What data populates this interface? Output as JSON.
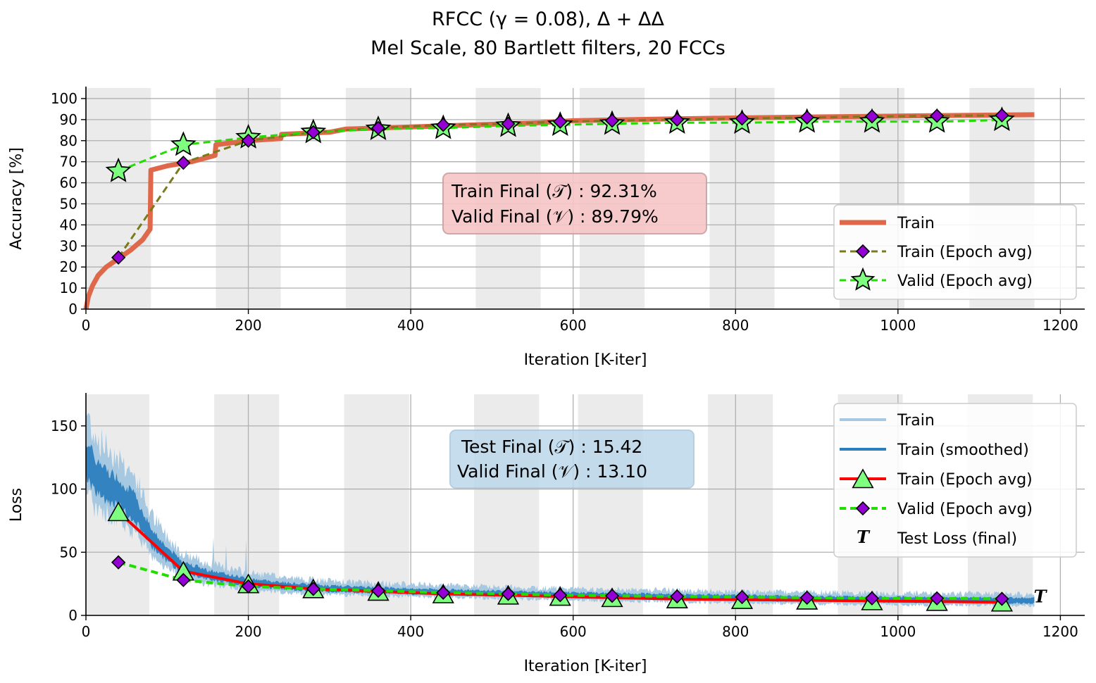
{
  "figure": {
    "title_line1": "RFCC (γ = 0.08), Δ + ΔΔ",
    "title_line2": "Mel Scale, 80 Bartlett filters, 20 FCCs"
  },
  "colors": {
    "train_acc": "#e0684a",
    "train_epoch_acc": "#7a7a1a",
    "valid_green": "#22dd00",
    "marker_purple": "#9400d3",
    "marker_green": "#7fff7f",
    "loss_raw": "#a6c8e0",
    "loss_smooth": "#2c7fbf",
    "loss_epoch": "#ff0000",
    "band": "#ebebeb",
    "grid": "#b0b0b0",
    "box_red": "#f7c6c6",
    "box_blue": "#bcd8ea"
  },
  "chart_data": [
    {
      "type": "line",
      "id": "accuracy",
      "xlabel": "Iteration [K-iter]",
      "ylabel": "Accuracy [%]",
      "xlim": [
        0,
        1230
      ],
      "ylim": [
        0,
        105
      ],
      "xticks": [
        0,
        200,
        400,
        600,
        800,
        1000,
        1200
      ],
      "yticks": [
        0,
        10,
        20,
        30,
        40,
        50,
        60,
        70,
        80,
        90,
        100
      ],
      "grid": true,
      "epoch_bands": [
        [
          0,
          80
        ],
        [
          160,
          240
        ],
        [
          320,
          400
        ],
        [
          480,
          560
        ],
        [
          608,
          688
        ],
        [
          768,
          848
        ],
        [
          928,
          1008
        ],
        [
          1088,
          1168
        ]
      ],
      "legend": {
        "position": "lower-right",
        "entries": [
          "Train",
          "Train (Epoch avg)",
          "Valid (Epoch avg)"
        ]
      },
      "annotation": {
        "line1": "Train Final (𝒯) :  92.31%",
        "line2": "Valid Final (𝒱) :  89.79%"
      },
      "series": [
        {
          "name": "Train",
          "style": "line",
          "x": [
            0,
            3,
            8,
            15,
            25,
            40,
            55,
            70,
            79,
            80,
            100,
            130,
            159,
            160,
            200,
            240,
            241,
            300,
            320,
            400,
            480,
            560,
            600,
            700,
            800,
            900,
            1000,
            1100,
            1168
          ],
          "y": [
            0,
            6,
            11,
            16,
            20,
            24,
            28,
            33,
            38,
            66,
            68,
            70,
            73,
            78,
            80,
            81,
            83,
            84,
            85.5,
            86.5,
            87.5,
            88.5,
            89.5,
            90.2,
            90.8,
            91.3,
            91.7,
            92.1,
            92.31
          ]
        },
        {
          "name": "Train (Epoch avg)",
          "style": "dashed-diamond",
          "x": [
            40,
            120,
            200,
            280,
            360,
            440,
            520,
            584,
            648,
            728,
            808,
            888,
            968,
            1048,
            1128
          ],
          "y": [
            24.5,
            69.5,
            80,
            84,
            86,
            87.5,
            88,
            89,
            89.5,
            90,
            90.5,
            91,
            91.5,
            91.8,
            92
          ]
        },
        {
          "name": "Valid (Epoch avg)",
          "style": "dashed-star",
          "x": [
            40,
            120,
            200,
            280,
            360,
            440,
            520,
            584,
            648,
            728,
            808,
            888,
            968,
            1048,
            1128
          ],
          "y": [
            65.5,
            78,
            81.5,
            84,
            85.5,
            86,
            87,
            87.5,
            88,
            88.5,
            88.5,
            89,
            89,
            89,
            89.8
          ]
        }
      ]
    },
    {
      "type": "line",
      "id": "loss",
      "xlabel": "Iteration [K-iter]",
      "ylabel": "Loss",
      "xlim": [
        0,
        1230
      ],
      "ylim": [
        0,
        175
      ],
      "xticks": [
        0,
        200,
        400,
        600,
        800,
        1000,
        1200
      ],
      "yticks": [
        0,
        50,
        100,
        150
      ],
      "grid": true,
      "epoch_bands": [
        [
          0,
          78
        ],
        [
          158,
          238
        ],
        [
          318,
          398
        ],
        [
          478,
          558
        ],
        [
          606,
          686
        ],
        [
          766,
          846
        ],
        [
          926,
          1006
        ],
        [
          1086,
          1166
        ]
      ],
      "legend": {
        "position": "upper-right",
        "entries": [
          "Train",
          "Train (smoothed)",
          "Train (Epoch avg)",
          "Valid (Epoch avg)",
          "Test Loss (final)"
        ]
      },
      "annotation": {
        "line1": "Test Final (𝒯) :  15.42",
        "line2": "Valid Final (𝒱) :  13.10"
      },
      "series": [
        {
          "name": "Train (smoothed)",
          "style": "band",
          "x": [
            0,
            10,
            20,
            40,
            60,
            80,
            100,
            120,
            150,
            200,
            250,
            300,
            400,
            500,
            600,
            700,
            800,
            900,
            1000,
            1100,
            1168
          ],
          "y": [
            125,
            112,
            105,
            97,
            85,
            62,
            48,
            38,
            32,
            26,
            23,
            21,
            19,
            17.5,
            16,
            15,
            14,
            13,
            12.5,
            12,
            11.5
          ]
        },
        {
          "name": "Train (Epoch avg)",
          "style": "solid-triangle",
          "x": [
            40,
            120,
            200,
            280,
            360,
            440,
            520,
            584,
            648,
            728,
            808,
            888,
            968,
            1048,
            1128
          ],
          "y": [
            82,
            35,
            25,
            21,
            19,
            17,
            16,
            15,
            14,
            13,
            12.5,
            12,
            11.5,
            11,
            10.5
          ]
        },
        {
          "name": "Valid (Epoch avg)",
          "style": "dashed-diamond",
          "x": [
            40,
            120,
            200,
            280,
            360,
            440,
            520,
            584,
            648,
            728,
            808,
            888,
            968,
            1048,
            1128
          ],
          "y": [
            42,
            28,
            23,
            21,
            19.5,
            18,
            17,
            16,
            15.5,
            15,
            14.5,
            14,
            13.5,
            13.5,
            13.1
          ]
        },
        {
          "name": "Test Loss (final)",
          "style": "marker-T",
          "x": [
            1175
          ],
          "y": [
            15.42
          ]
        }
      ]
    }
  ]
}
